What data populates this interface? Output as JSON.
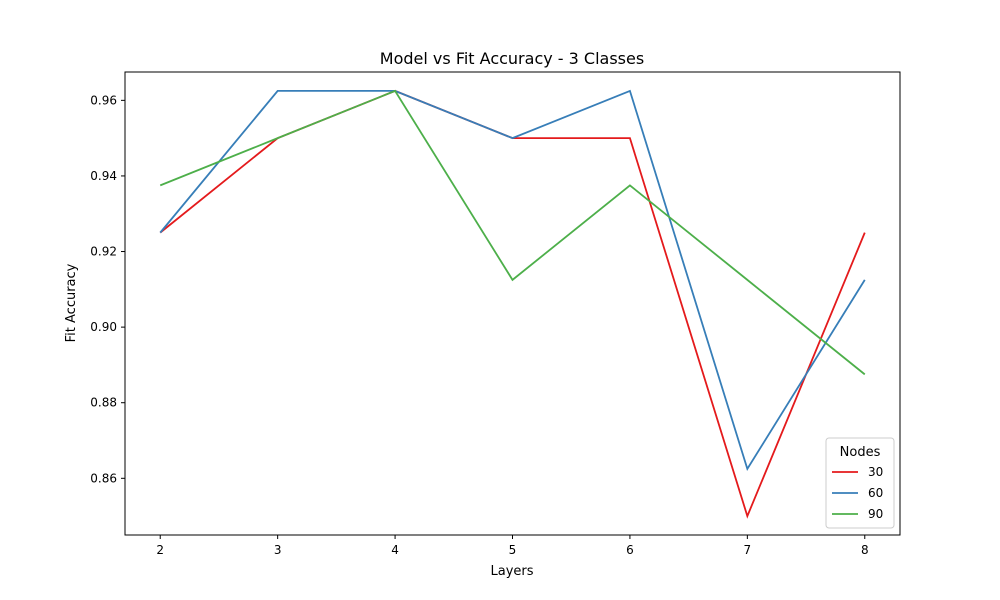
{
  "chart_data": {
    "type": "line",
    "title": "Model vs Fit Accuracy - 3 Classes",
    "xlabel": "Layers",
    "ylabel": "Fit Accuracy",
    "x": [
      2,
      3,
      4,
      5,
      6,
      7,
      8
    ],
    "xticks": [
      "2",
      "3",
      "4",
      "5",
      "6",
      "7",
      "8"
    ],
    "yticks": [
      "0.86",
      "0.88",
      "0.90",
      "0.92",
      "0.94",
      "0.96"
    ],
    "ylim": [
      0.845,
      0.9675
    ],
    "grid": false,
    "legend": {
      "title": "Nodes",
      "placement": "lower-right"
    },
    "series": [
      {
        "name": "30",
        "color": "#e41a1c",
        "values": [
          0.925,
          0.95,
          0.9625,
          0.95,
          0.95,
          0.85,
          0.925
        ]
      },
      {
        "name": "60",
        "color": "#377eb8",
        "values": [
          0.925,
          0.9625,
          0.9625,
          0.95,
          0.9625,
          0.8625,
          0.9125
        ]
      },
      {
        "name": "90",
        "color": "#4daf4a",
        "values": [
          0.9375,
          0.95,
          0.9625,
          0.9125,
          0.9375,
          0.9125,
          0.8875
        ]
      }
    ]
  }
}
